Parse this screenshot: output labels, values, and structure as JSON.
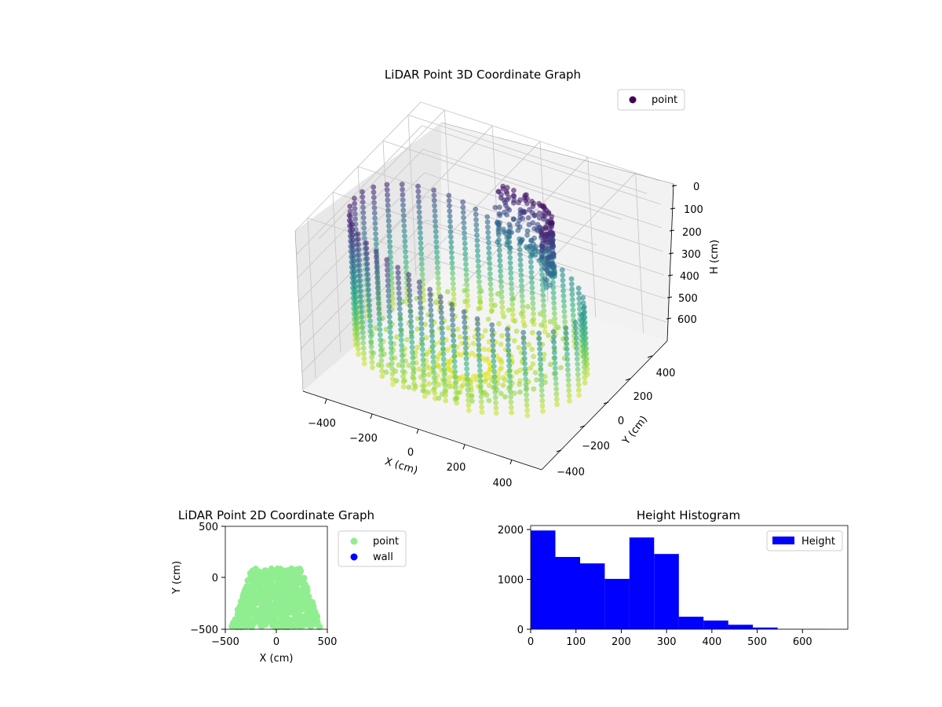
{
  "chart_data": [
    {
      "type": "scatter",
      "title": "LiDAR Point 3D Coordinate Graph",
      "xlabel": "X (cm)",
      "ylabel": "Y (cm)",
      "zlabel": "H (cm)",
      "xlim": [
        -500,
        500
      ],
      "ylim": [
        -500,
        500
      ],
      "zlim": [
        0,
        680
      ],
      "z_inverted": true,
      "x_ticks": [
        "−400",
        "−200",
        "0",
        "200",
        "400"
      ],
      "y_ticks": [
        "−400",
        "−200",
        "0",
        "200",
        "400"
      ],
      "z_ticks": [
        "0",
        "100",
        "200",
        "300",
        "400",
        "500",
        "600"
      ],
      "legend": [
        {
          "label": "point",
          "color": "#440154"
        }
      ],
      "legend_position": "top-right",
      "colormap": "viridis",
      "grid": true
    },
    {
      "type": "scatter",
      "title": "LiDAR Point 2D Coordinate Graph",
      "xlabel": "X (cm)",
      "ylabel": "Y (cm)",
      "xlim": [
        -500,
        500
      ],
      "ylim": [
        -500,
        500
      ],
      "x_ticks": [
        "−500",
        "0",
        "500"
      ],
      "y_ticks": [
        "500",
        "0",
        "−500"
      ],
      "series": [
        {
          "name": "point",
          "color": "#90ee90"
        },
        {
          "name": "wall",
          "color": "#0000ff"
        }
      ],
      "legend_position": "outside-right",
      "grid": false
    },
    {
      "type": "bar",
      "title": "Height Histogram",
      "xlabel": "",
      "ylabel": "",
      "bin_edges": [
        0,
        54.5,
        109,
        163.5,
        218,
        272.5,
        327,
        381.5,
        436,
        490.5,
        545,
        599.5,
        654
      ],
      "counts": [
        1980,
        1450,
        1320,
        1010,
        1840,
        1510,
        250,
        175,
        90,
        35,
        5,
        3
      ],
      "xlim": [
        0,
        700
      ],
      "ylim": [
        0,
        2080
      ],
      "x_ticks": [
        "0",
        "100",
        "200",
        "300",
        "400",
        "500",
        "600"
      ],
      "y_ticks": [
        "0",
        "1000",
        "2000"
      ],
      "series": [
        {
          "name": "Height",
          "color": "#0000ff"
        }
      ],
      "legend_position": "top-right",
      "grid": false
    }
  ]
}
